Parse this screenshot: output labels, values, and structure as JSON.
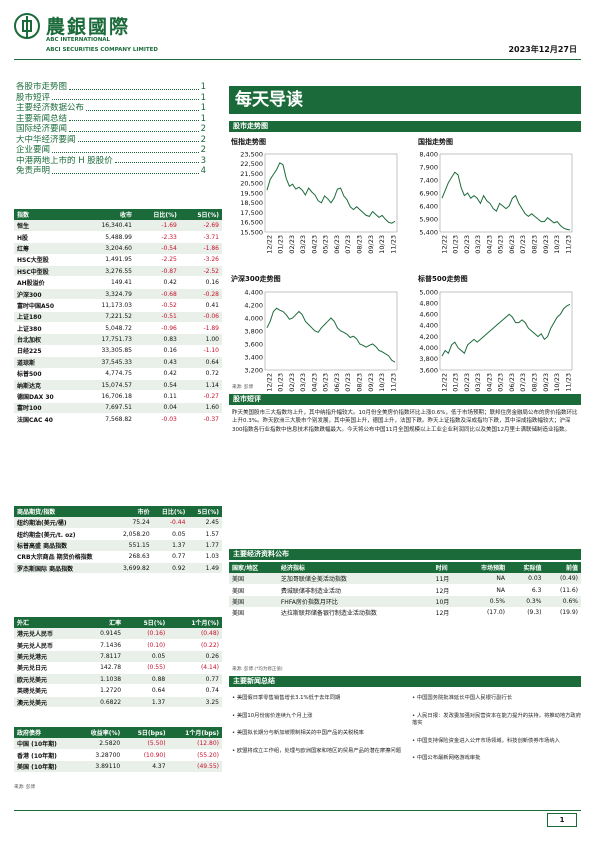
{
  "header": {
    "brand_cn": "農銀國際",
    "brand_en_1": "ABC INTERNATIONAL",
    "brand_en_2": "ABCI SECURITIES COMPANY LIMITED",
    "date": "2023年12月27日"
  },
  "toc": [
    {
      "label": "各股市走势图",
      "page": "1"
    },
    {
      "label": "股市短评",
      "page": "1"
    },
    {
      "label": "主要经济数据公布",
      "page": "1"
    },
    {
      "label": "主要新闻总结",
      "page": "1"
    },
    {
      "label": "国际经济要闻",
      "page": "2"
    },
    {
      "label": "大中华经济要闻",
      "page": "2"
    },
    {
      "label": "企业要闻",
      "page": "2"
    },
    {
      "label": "中港两地上市的 H 股股价",
      "page": "3"
    },
    {
      "label": "免责声明",
      "page": "4"
    }
  ],
  "index_table": {
    "headers": [
      "指数",
      "收市",
      "日比(%)",
      "5日(%)"
    ],
    "rows": [
      [
        "恒生",
        "16,340.41",
        "-1.69",
        "-2.69"
      ],
      [
        "H股",
        "5,488.99",
        "-2.33",
        "-3.71"
      ],
      [
        "红筹",
        "3,204.60",
        "-0.54",
        "-1.86"
      ],
      [
        "HSC大型股",
        "1,491.95",
        "-2.25",
        "-3.26"
      ],
      [
        "HSC中型股",
        "3,276.55",
        "-0.87",
        "-2.52"
      ],
      [
        "AH股溢价",
        "149.41",
        "0.42",
        "0.16"
      ],
      [
        "沪深300",
        "3,324.79",
        "-0.68",
        "-0.28"
      ],
      [
        "富时中国A50",
        "11,173.03",
        "-0.52",
        "0.41"
      ],
      [
        "上证180",
        "7,221.52",
        "-0.51",
        "-0.06"
      ],
      [
        "上证380",
        "5,048.72",
        "-0.96",
        "-1.89"
      ],
      [
        "台北加权",
        "17,751.73",
        "0.83",
        "1.00"
      ],
      [
        "日经225",
        "33,305.85",
        "0.16",
        "-1.10"
      ],
      [
        "道琼斯",
        "37,545.33",
        "0.43",
        "0.64"
      ],
      [
        "标普500",
        "4,774.75",
        "0.42",
        "0.72"
      ],
      [
        "纳斯达克",
        "15,074.57",
        "0.54",
        "1.14"
      ],
      [
        "德国DAX 30",
        "16,706.18",
        "0.11",
        "-0.27"
      ],
      [
        "富时100",
        "7,697.51",
        "0.04",
        "1.60"
      ],
      [
        "法国CAC 40",
        "7,568.82",
        "-0.03",
        "-0.37"
      ]
    ]
  },
  "commodity_table": {
    "headers": [
      "商品期货/指数",
      "市价",
      "日比(%)",
      "5日(%)"
    ],
    "rows": [
      [
        "纽约期油(美元/桶)",
        "75.24",
        "-0.44",
        "2.45"
      ],
      [
        "纽约期金(美元/t. oz)",
        "2,058.20",
        "0.05",
        "1.57"
      ],
      [
        "标普高盛 商品指数",
        "551.15",
        "1.37",
        "1.77"
      ],
      [
        "CRB大宗商品 期货价格指数",
        "268.63",
        "0.77",
        "1.03"
      ],
      [
        "罗杰斯国际 商品指数",
        "3,699.82",
        "0.92",
        "1.49"
      ]
    ]
  },
  "fx_table": {
    "headers": [
      "外汇",
      "汇率",
      "5日(%)",
      "1个月(%)"
    ],
    "rows": [
      [
        "港元兑人民币",
        "0.9145",
        "(0.16)",
        "(0.48)"
      ],
      [
        "美元兑人民币",
        "7.1436",
        "(0.10)",
        "(0.22)"
      ],
      [
        "美元兑港元",
        "7.8117",
        "0.05",
        "0.26"
      ],
      [
        "美元兑日元",
        "142.78",
        "(0.55)",
        "(4.14)"
      ],
      [
        "欧元兑美元",
        "1.1038",
        "0.88",
        "0.77"
      ],
      [
        "英磅兑美元",
        "1.2720",
        "0.64",
        "0.74"
      ],
      [
        "澳元兑美元",
        "0.6822",
        "1.37",
        "3.25"
      ]
    ]
  },
  "bond_table": {
    "headers": [
      "政府债券",
      "收益率(%)",
      "5日(bps)",
      "1个月(bps)"
    ],
    "rows": [
      [
        "中国 (10年期)",
        "2.5820",
        "(5.50)",
        "(12.80)"
      ],
      [
        "香港 (10年期)",
        "3.28700",
        "(10.90)",
        "(55.20)"
      ],
      [
        "美国 (10年期)",
        "3.89110",
        "4.37",
        "(49.55)"
      ]
    ]
  },
  "source_note": "来源: 彭博",
  "source_note_eco": "来源: 彭博    (*均为修正值)",
  "banner_title": "每天导读",
  "section_charts": "股市走势图",
  "section_comment": "股市短评",
  "section_eco": "主要经济资料公布",
  "section_news": "主要新闻总结",
  "x_ticks": [
    "12/22",
    "01/23",
    "02/23",
    "03/23",
    "04/23",
    "05/23",
    "06/23",
    "07/23",
    "08/23",
    "09/23",
    "10/23",
    "11/23"
  ],
  "chart_data": [
    {
      "type": "line",
      "title": "恒指走势图",
      "ylim": [
        15500,
        23500
      ],
      "yticks": [
        "23,500",
        "22,500",
        "21,500",
        "20,500",
        "19,500",
        "18,500",
        "17,500",
        "16,500",
        "15,500"
      ],
      "values": [
        19800,
        20900,
        21400,
        21900,
        22600,
        22400,
        21000,
        20200,
        20400,
        19900,
        20100,
        19800,
        19300,
        20000,
        19600,
        19300,
        18700,
        18500,
        19200,
        18900,
        18500,
        19000,
        19900,
        20000,
        19200,
        18800,
        18100,
        17800,
        18100,
        17800,
        17500,
        17200,
        17100,
        17600,
        17300,
        17000,
        17200,
        16800,
        16500,
        16400,
        16600
      ]
    },
    {
      "type": "line",
      "title": "国指走势图",
      "ylim": [
        5400,
        8400
      ],
      "yticks": [
        "8,400",
        "7,900",
        "7,400",
        "6,900",
        "6,400",
        "5,900",
        "5,400"
      ],
      "values": [
        6700,
        7000,
        7300,
        7500,
        7700,
        7600,
        7100,
        6800,
        6900,
        6700,
        6800,
        6700,
        6500,
        6800,
        6600,
        6500,
        6300,
        6200,
        6500,
        6400,
        6300,
        6400,
        6700,
        6800,
        6500,
        6300,
        6100,
        6000,
        6100,
        6000,
        5900,
        5800,
        5800,
        5950,
        5850,
        5750,
        5800,
        5650,
        5550,
        5500,
        5480
      ]
    },
    {
      "type": "line",
      "title": "沪深300走势图",
      "ylim": [
        3200,
        4400
      ],
      "yticks": [
        "4,400",
        "4,200",
        "4,000",
        "3,800",
        "3,600",
        "3,400",
        "3,200"
      ],
      "values": [
        3850,
        3950,
        4100,
        4150,
        4120,
        4100,
        4050,
        3980,
        4000,
        4050,
        4100,
        4050,
        3950,
        3900,
        3850,
        3800,
        3780,
        3850,
        3900,
        3950,
        4000,
        3950,
        3850,
        3800,
        3780,
        3750,
        3700,
        3720,
        3680,
        3600,
        3580,
        3550,
        3580,
        3600,
        3560,
        3500,
        3480,
        3450,
        3420,
        3350,
        3320
      ]
    },
    {
      "type": "line",
      "title": "标普500走势图",
      "ylim": [
        3600,
        5000
      ],
      "yticks": [
        "5,000",
        "4,800",
        "4,600",
        "4,400",
        "4,200",
        "4,000",
        "3,800",
        "3,600"
      ],
      "values": [
        3850,
        3950,
        3900,
        4050,
        4100,
        4000,
        3950,
        3900,
        4050,
        4100,
        4150,
        4100,
        4150,
        4200,
        4250,
        4300,
        4350,
        4400,
        4450,
        4500,
        4550,
        4600,
        4550,
        4450,
        4450,
        4500,
        4450,
        4350,
        4300,
        4250,
        4200,
        4250,
        4150,
        4200,
        4350,
        4450,
        4550,
        4600,
        4700,
        4750,
        4780
      ]
    }
  ],
  "market_comment": "昨天美国股市三大指数均上升，其中纳指升幅较大。10月份全美房价指数环比上涨0.6%，低于市场预期；联邦住房金融局公布的房价指数环比上升0.3%。昨天欧洲三大股市个别发展，其中英国上升，德国上升，法国下跌。昨天上证指数及深成指均下跌，其中深成指跌幅较大；沪深300指数各行业指数中信息技术指数跌幅最大。今天将公布中国11月全国规模以上工业企业利润同比以及美国12月里士满联储制造业指数。",
  "eco_table": {
    "headers": [
      "国家/地区",
      "经济指标",
      "时间",
      "市场预期",
      "实际值",
      "前值"
    ],
    "rows": [
      [
        "美国",
        "芝加哥联储全美活动指数",
        "11月",
        "NA",
        "0.03",
        "(0.49)"
      ],
      [
        "美国",
        "费城联储非制造业活动",
        "12月",
        "NA",
        "6.3",
        "(11.6)"
      ],
      [
        "美国",
        "FHFA房价指数月环比",
        "10月",
        "0.5%",
        "0.3%",
        "0.6%"
      ],
      [
        "美国",
        "达拉斯联邦储备银行制造业活动指数",
        "12月",
        "(17.0)",
        "(9.3)",
        "(19.9)"
      ]
    ]
  },
  "news_left": [
    "美国假日季零售销售增长3.1%低于去年同期",
    "美国10月份房价连续九个月上涨",
    "美国拟长期分与新加坡限制相关的中国产品的关税税率",
    "欧盟将成立工作组，处理与欧洲国家和地区的贸易产品的潜在摩擦问题"
  ],
  "news_right": [
    "中国国务院批准延长中国人民银行副行长",
    "人民日报：发改委加强对民营资本在能力提升的扶持，将推动地方政府落实",
    "中国支持保险资金进入公开市场领域，科技创新债券市场纳入",
    "中国公布最新网络游戏审批"
  ],
  "page_number": "1"
}
